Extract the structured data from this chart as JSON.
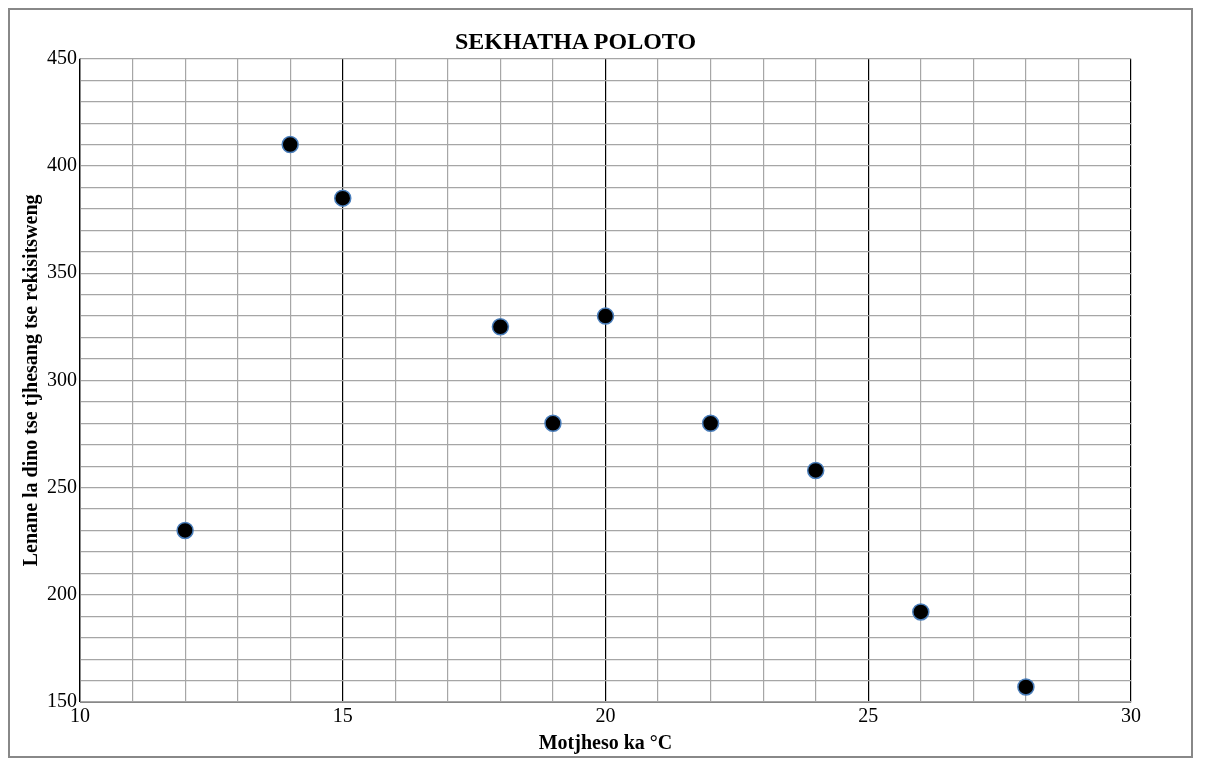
{
  "chart_data": {
    "type": "scatter",
    "title": "SEKHATHA POLOTO",
    "xlabel": "Motjheso ka °C",
    "ylabel": "Lenane la dino tse tjhesang tse rekisitsweng",
    "x": [
      12,
      14,
      15,
      18,
      19,
      20,
      22,
      24,
      26,
      28
    ],
    "series": [
      {
        "color": "#000000",
        "values": [
          230,
          410,
          385,
          325,
          280,
          330,
          280,
          258,
          192,
          157
        ]
      }
    ],
    "xlim": [
      10,
      30
    ],
    "xticks": [
      10,
      {
        "value": 11,
        "label": null
      },
      {
        "value": 12,
        "label": null
      },
      {
        "value": 13,
        "label": null
      },
      {
        "value": 14,
        "label": null
      },
      15,
      {
        "value": 16,
        "label": null
      },
      {
        "value": 17,
        "label": null
      },
      {
        "value": 18,
        "label": null
      },
      {
        "value": 19,
        "label": null
      },
      20,
      {
        "value": 21,
        "label": null
      },
      {
        "value": 22,
        "label": null
      },
      {
        "value": 23,
        "label": null
      },
      {
        "value": 24,
        "label": null
      },
      25,
      {
        "value": 26,
        "label": null
      },
      {
        "value": 27,
        "label": null
      },
      {
        "value": 28,
        "label": null
      },
      {
        "value": 29,
        "label": null
      },
      30
    ],
    "ylim": [
      150,
      450
    ],
    "yticks": [
      150,
      {
        "value": 160,
        "label": null
      },
      {
        "value": 170,
        "label": null
      },
      {
        "value": 180,
        "label": null
      },
      {
        "value": 190,
        "label": null
      },
      200,
      {
        "value": 210,
        "label": null
      },
      {
        "value": 220,
        "label": null
      },
      {
        "value": 230,
        "label": null
      },
      {
        "value": 240,
        "label": null
      },
      250,
      {
        "value": 260,
        "label": null
      },
      {
        "value": 270,
        "label": null
      },
      {
        "value": 280,
        "label": null
      },
      {
        "value": 290,
        "label": null
      },
      300,
      {
        "value": 310,
        "label": null
      },
      {
        "value": 320,
        "label": null
      },
      {
        "value": 330,
        "label": null
      },
      {
        "value": 340,
        "label": null
      },
      350,
      {
        "value": 360,
        "label": null
      },
      {
        "value": 370,
        "label": null
      },
      {
        "value": 380,
        "label": null
      },
      {
        "value": 390,
        "label": null
      },
      400,
      {
        "value": 410,
        "label": null
      },
      {
        "value": 420,
        "label": null
      },
      {
        "value": 430,
        "label": null
      },
      {
        "value": 440,
        "label": null
      },
      450
    ],
    "grid": true,
    "legend": false,
    "marker": "circle"
  }
}
